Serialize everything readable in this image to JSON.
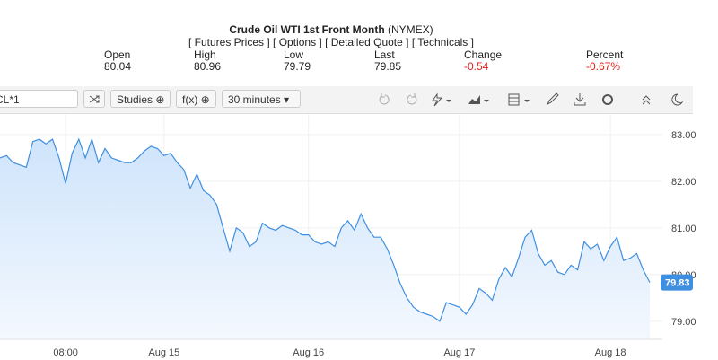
{
  "header": {
    "title": "Crude Oil WTI 1st Front Month",
    "exchange": "(NYMEX)",
    "links": [
      "[ Futures Prices ]",
      "[ Options ]",
      "[ Detailed Quote ]",
      "[ Technicals ]"
    ]
  },
  "quote": {
    "labels": [
      "Open",
      "High",
      "Low",
      "Last",
      "Change",
      "Percent"
    ],
    "values": [
      "80.04",
      "80.96",
      "79.79",
      "79.85",
      "-0.54",
      "-0.67%"
    ]
  },
  "toolbar": {
    "symbol": "CL*1",
    "studies": "Studies",
    "fx": "f(x)",
    "interval": "30 minutes"
  },
  "chart_data": {
    "type": "line",
    "categories": [
      null,
      null,
      null,
      null,
      null,
      null,
      null,
      null,
      null,
      null,
      "08:00",
      null,
      null,
      null,
      null,
      null,
      null,
      null,
      null,
      null,
      null,
      null,
      null,
      null,
      null,
      "Aug 15",
      null,
      null,
      null,
      null,
      null,
      null,
      null,
      null,
      null,
      null,
      null,
      null,
      null,
      null,
      null,
      null,
      null,
      null,
      null,
      null,
      null,
      "Aug 16",
      null,
      null,
      null,
      null,
      null,
      null,
      null,
      null,
      null,
      null,
      null,
      null,
      null,
      null,
      null,
      null,
      null,
      null,
      null,
      null,
      null,
      null,
      "Aug 17",
      null,
      null,
      null,
      null,
      null,
      null,
      null,
      null,
      null,
      null,
      null,
      null,
      null,
      null,
      null,
      null,
      null,
      null,
      null,
      null,
      null,
      null,
      "Aug 18",
      null,
      null,
      null,
      null,
      null,
      null
    ],
    "series": [
      {
        "name": "CL*1",
        "color": "#3f8fe0",
        "values": [
          82.5,
          82.55,
          82.4,
          82.35,
          82.3,
          82.85,
          82.9,
          82.8,
          82.9,
          82.5,
          81.95,
          82.6,
          82.9,
          82.5,
          82.9,
          82.4,
          82.7,
          82.5,
          82.45,
          82.4,
          82.4,
          82.5,
          82.65,
          82.75,
          82.7,
          82.55,
          82.6,
          82.4,
          82.25,
          81.85,
          82.15,
          81.8,
          81.7,
          81.5,
          81.0,
          80.5,
          81.0,
          80.9,
          80.6,
          80.7,
          81.1,
          81.0,
          80.95,
          81.05,
          81.0,
          80.95,
          80.85,
          80.85,
          80.7,
          80.65,
          80.7,
          80.6,
          81.0,
          81.15,
          80.95,
          81.3,
          81.0,
          80.8,
          80.8,
          80.55,
          80.2,
          79.8,
          79.5,
          79.3,
          79.2,
          79.15,
          79.1,
          79.0,
          79.4,
          79.35,
          79.3,
          79.15,
          79.35,
          79.7,
          79.6,
          79.45,
          79.9,
          80.15,
          79.95,
          80.35,
          80.8,
          80.95,
          80.45,
          80.2,
          80.3,
          80.05,
          80.0,
          80.2,
          80.1,
          80.7,
          80.55,
          80.65,
          80.3,
          80.6,
          80.8,
          80.3,
          80.35,
          80.45,
          80.1,
          79.83
        ]
      }
    ],
    "ylim": [
      78.63,
      83.44
    ],
    "yticks": [
      {
        "value": 79,
        "label": "79.00"
      },
      {
        "value": 80,
        "label": "80.00"
      },
      {
        "value": 81,
        "label": "81.00"
      },
      {
        "value": 82,
        "label": "82.00"
      },
      {
        "value": 83,
        "label": "83.00"
      }
    ],
    "grid": true
  }
}
